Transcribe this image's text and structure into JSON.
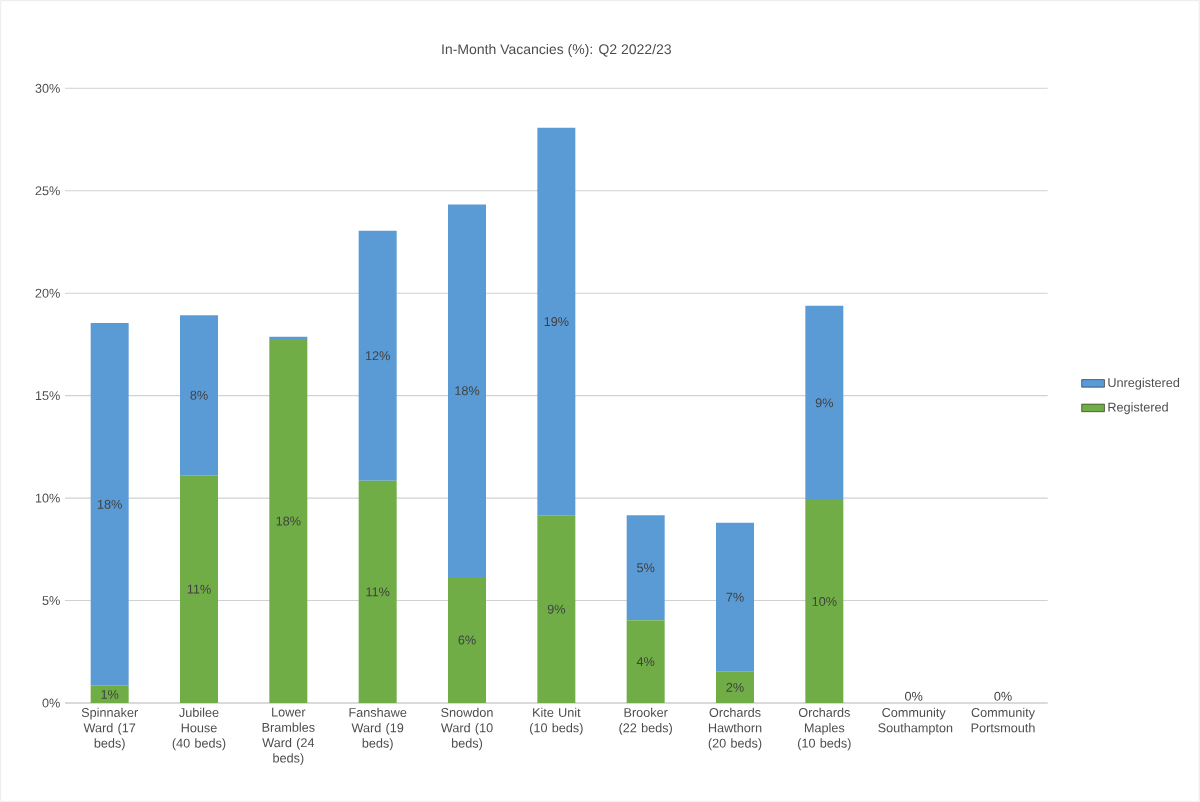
{
  "chart_data": {
    "type": "bar",
    "title": "In-Month Vacancies (%): Q2 2022/23",
    "stacked": true,
    "grid": "y",
    "legend": "right",
    "categories": [
      "Spinnaker Ward (17 beds)",
      "Jubilee House (40 beds)",
      "Lower Brambles Ward (24 beds)",
      "Fanshawe Ward (19 beds)",
      "Snowdon Ward (10 beds)",
      "Kite Unit (10 beds)",
      "Brooker (22 beds)",
      "Orchards Hawthorn (20 beds)",
      "Orchards Maples (10 beds)",
      "Community Southampton",
      "Community Portsmouth"
    ],
    "ylim": [
      0,
      30
    ],
    "yticks": [
      {
        "value": 0,
        "label": "0%"
      },
      {
        "value": 5,
        "label": "5%"
      },
      {
        "value": 10,
        "label": "10%"
      },
      {
        "value": 15,
        "label": "15%"
      },
      {
        "value": 20,
        "label": "20%"
      },
      {
        "value": 25,
        "label": "25%"
      },
      {
        "value": 30,
        "label": "30%"
      }
    ],
    "series": [
      {
        "name": "Registered",
        "color": "#70ad47",
        "values": [
          0.84,
          11.11,
          17.76,
          10.85,
          6.15,
          9.16,
          4.04,
          1.53,
          9.91,
          0,
          0
        ],
        "value_labels": [
          "1%",
          "11%",
          "18%",
          "11%",
          "6%",
          "9%",
          "4%",
          "2%",
          "10%",
          "0%",
          "0%"
        ]
      },
      {
        "name": "Unregistered",
        "color": "#5b9bd5",
        "values": [
          17.71,
          7.82,
          0.12,
          12.2,
          18.18,
          18.91,
          5.12,
          7.27,
          9.48,
          0,
          0
        ],
        "value_labels": [
          "18%",
          "8%",
          null,
          "12%",
          "18%",
          "19%",
          "5%",
          "7%",
          "9%",
          null,
          null
        ]
      }
    ]
  }
}
